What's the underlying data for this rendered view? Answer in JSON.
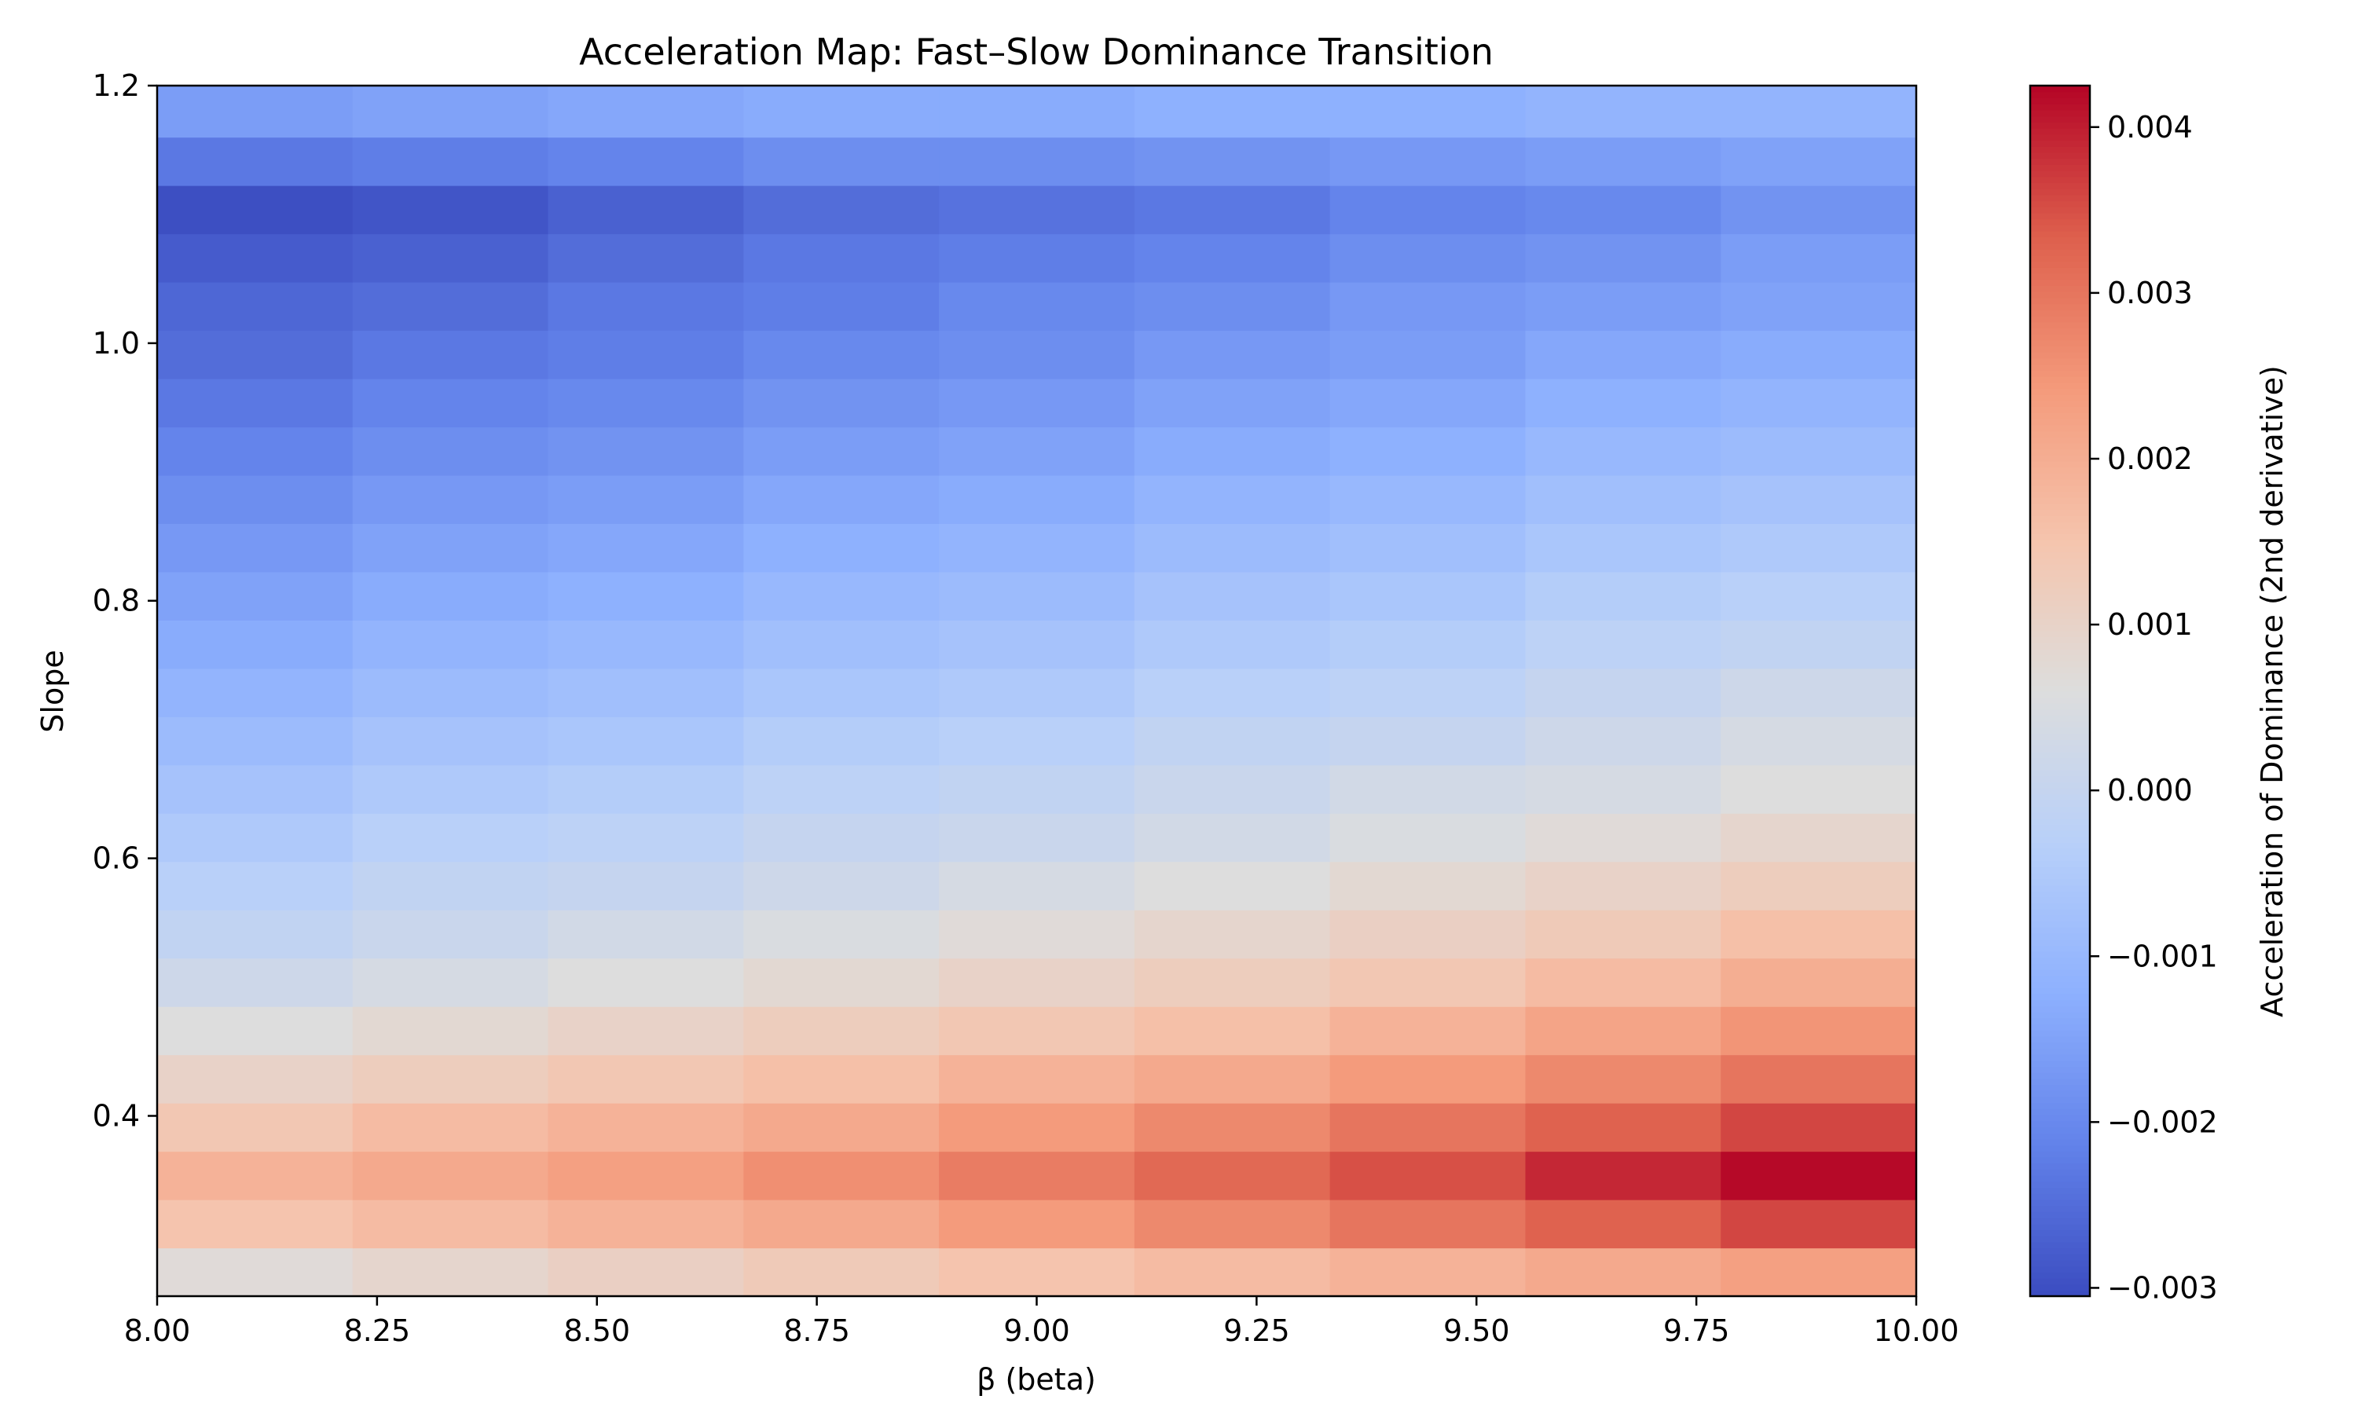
{
  "chart_data": {
    "type": "heatmap",
    "title": "Acceleration Map: Fast–Slow Dominance Transition",
    "xlabel": "β (beta)",
    "ylabel": "Slope",
    "colorbar_label": "Acceleration of Dominance (2nd derivative)",
    "colormap": "coolwarm",
    "xlim": [
      8.0,
      10.0
    ],
    "ylim": [
      0.26,
      1.2
    ],
    "clim": [
      -0.00305,
      0.00425
    ],
    "x_ticks": [
      "8.00",
      "8.25",
      "8.50",
      "8.75",
      "9.00",
      "9.25",
      "9.50",
      "9.75",
      "10.00"
    ],
    "x_tick_values": [
      8.0,
      8.25,
      8.5,
      8.75,
      9.0,
      9.25,
      9.5,
      9.75,
      10.0
    ],
    "y_ticks": [
      "0.4",
      "0.6",
      "0.8",
      "1.0",
      "1.2"
    ],
    "y_tick_values": [
      0.4,
      0.6,
      0.8,
      1.0,
      1.2
    ],
    "colorbar_ticks": [
      "−0.003",
      "−0.002",
      "−0.001",
      "0.000",
      "0.001",
      "0.002",
      "0.003",
      "0.004"
    ],
    "colorbar_tick_values": [
      -0.003,
      -0.002,
      -0.001,
      0.0,
      0.001,
      0.002,
      0.003,
      0.004
    ],
    "x_edges": [
      8.0,
      8.2222,
      8.4444,
      8.6667,
      8.8889,
      9.1111,
      9.3333,
      9.5556,
      9.7778,
      10.0
    ],
    "y_edges": [
      0.26,
      0.2975,
      0.335,
      0.3725,
      0.41,
      0.4475,
      0.485,
      0.5225,
      0.56,
      0.5975,
      0.635,
      0.6725,
      0.71,
      0.7475,
      0.785,
      0.8225,
      0.86,
      0.8975,
      0.935,
      0.9725,
      1.01,
      1.0475,
      1.085,
      1.1225,
      1.16,
      1.2
    ],
    "values_note_rows_bottom_to_top": true,
    "values": [
      [
        0.0007,
        0.0009,
        0.0011,
        0.0013,
        0.0015,
        0.0017,
        0.0019,
        0.0021,
        0.0023
      ],
      [
        0.0015,
        0.0017,
        0.0019,
        0.0021,
        0.0024,
        0.0027,
        0.003,
        0.0033,
        0.0036
      ],
      [
        0.0019,
        0.0021,
        0.0023,
        0.0026,
        0.0029,
        0.0032,
        0.0035,
        0.0039,
        0.0042
      ],
      [
        0.0014,
        0.0017,
        0.0019,
        0.0021,
        0.0024,
        0.0027,
        0.003,
        0.0033,
        0.0036
      ],
      [
        0.001,
        0.0012,
        0.0014,
        0.0016,
        0.0019,
        0.0021,
        0.0024,
        0.0027,
        0.003
      ],
      [
        0.0006,
        0.0008,
        0.001,
        0.0012,
        0.0014,
        0.0016,
        0.0019,
        0.0022,
        0.0025
      ],
      [
        0.0002,
        0.0004,
        0.0006,
        0.0008,
        0.001,
        0.0012,
        0.0014,
        0.0017,
        0.002
      ],
      [
        -0.0001,
        0.0001,
        0.0003,
        0.0005,
        0.0007,
        0.0009,
        0.0011,
        0.0013,
        0.0016
      ],
      [
        -0.0003,
        -0.0001,
        0.0,
        0.0002,
        0.0004,
        0.0006,
        0.0008,
        0.001,
        0.0012
      ],
      [
        -0.0005,
        -0.0003,
        -0.0002,
        0.0,
        0.0001,
        0.0003,
        0.0005,
        0.0007,
        0.0009
      ],
      [
        -0.0007,
        -0.0005,
        -0.0004,
        -0.0002,
        -0.0001,
        0.0001,
        0.0003,
        0.0004,
        0.0006
      ],
      [
        -0.0009,
        -0.0007,
        -0.0006,
        -0.0004,
        -0.0003,
        -0.0001,
        0.0,
        0.0002,
        0.0004
      ],
      [
        -0.0011,
        -0.0009,
        -0.0008,
        -0.0006,
        -0.0005,
        -0.0003,
        -0.0002,
        0.0,
        0.0002
      ],
      [
        -0.0013,
        -0.0011,
        -0.001,
        -0.0008,
        -0.0007,
        -0.0005,
        -0.0004,
        -0.0002,
        -0.0001
      ],
      [
        -0.0015,
        -0.0013,
        -0.0012,
        -0.001,
        -0.0009,
        -0.0007,
        -0.0006,
        -0.0004,
        -0.0003
      ],
      [
        -0.0017,
        -0.0015,
        -0.0014,
        -0.0012,
        -0.0011,
        -0.0009,
        -0.0008,
        -0.0006,
        -0.0005
      ],
      [
        -0.0019,
        -0.0017,
        -0.0016,
        -0.0014,
        -0.0013,
        -0.0011,
        -0.001,
        -0.0008,
        -0.0007
      ],
      [
        -0.0021,
        -0.0019,
        -0.0018,
        -0.0016,
        -0.0015,
        -0.0013,
        -0.0012,
        -0.001,
        -0.0009
      ],
      [
        -0.0023,
        -0.0021,
        -0.002,
        -0.0018,
        -0.0017,
        -0.0015,
        -0.0014,
        -0.0012,
        -0.0011
      ],
      [
        -0.0025,
        -0.0023,
        -0.0022,
        -0.002,
        -0.0019,
        -0.0017,
        -0.0016,
        -0.0014,
        -0.0013
      ],
      [
        -0.0026,
        -0.0025,
        -0.0023,
        -0.0022,
        -0.002,
        -0.0019,
        -0.0017,
        -0.0016,
        -0.0015
      ],
      [
        -0.0028,
        -0.0027,
        -0.0025,
        -0.0023,
        -0.0022,
        -0.0021,
        -0.0019,
        -0.0018,
        -0.0016
      ],
      [
        -0.003,
        -0.0029,
        -0.0027,
        -0.0025,
        -0.0024,
        -0.0023,
        -0.0021,
        -0.002,
        -0.0018
      ],
      [
        -0.0023,
        -0.0022,
        -0.0021,
        -0.0019,
        -0.0019,
        -0.0018,
        -0.0017,
        -0.0016,
        -0.0015
      ],
      [
        -0.0016,
        -0.0015,
        -0.0014,
        -0.0013,
        -0.0013,
        -0.0012,
        -0.0012,
        -0.0011,
        -0.0011
      ]
    ]
  }
}
